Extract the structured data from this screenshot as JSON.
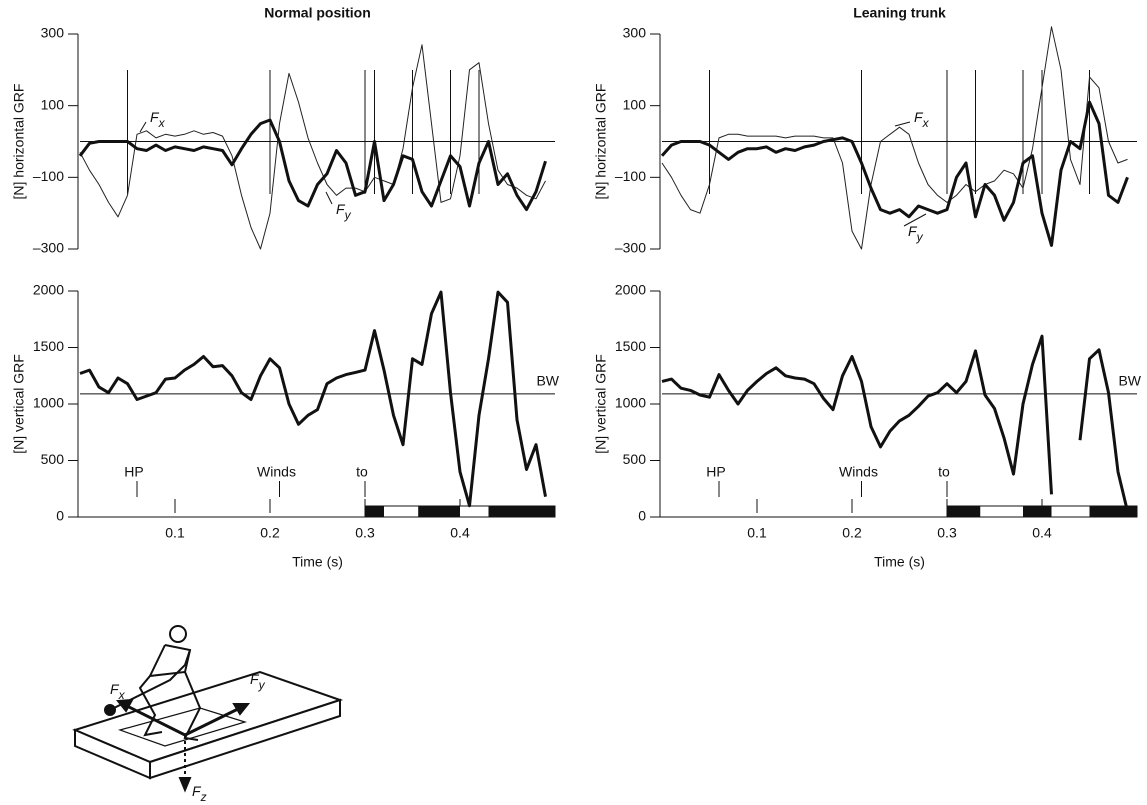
{
  "chart_data": [
    {
      "type": "line",
      "title": "Normal position",
      "y_label": "[N] horizontal GRF",
      "xlim": [
        0,
        0.5
      ],
      "ylim": [
        -300,
        300
      ],
      "yticks": [
        {
          "value": -300,
          "label": "–300"
        },
        {
          "value": -100,
          "label": "–100"
        },
        100,
        300
      ],
      "reference_line": {
        "value": 0
      },
      "events": [
        0.05,
        0.2,
        0.3,
        0.31,
        0.35,
        0.39,
        0.42
      ],
      "x": [
        0,
        0.01,
        0.02,
        0.03,
        0.04,
        0.05,
        0.06,
        0.07,
        0.08,
        0.09,
        0.1,
        0.11,
        0.12,
        0.13,
        0.14,
        0.15,
        0.16,
        0.17,
        0.18,
        0.19,
        0.2,
        0.21,
        0.22,
        0.23,
        0.24,
        0.25,
        0.26,
        0.27,
        0.28,
        0.29,
        0.3,
        0.31,
        0.32,
        0.33,
        0.34,
        0.35,
        0.36,
        0.37,
        0.38,
        0.39,
        0.4,
        0.41,
        0.42,
        0.43,
        0.44,
        0.45,
        0.46,
        0.47,
        0.48,
        0.49
      ],
      "series": [
        {
          "name": "Fx",
          "color": "#222",
          "width": 1,
          "values": [
            -30,
            -80,
            -120,
            -170,
            -210,
            -150,
            20,
            30,
            10,
            20,
            15,
            20,
            30,
            20,
            25,
            15,
            -40,
            -150,
            -240,
            -300,
            -200,
            50,
            190,
            110,
            10,
            -60,
            -120,
            -150,
            -130,
            -130,
            -140,
            -100,
            -110,
            -120,
            -20,
            150,
            270,
            50,
            -170,
            -160,
            -40,
            200,
            220,
            50,
            -80,
            -120,
            -130,
            -150,
            -160,
            -110
          ]
        },
        {
          "name": "Fy",
          "color": "#111",
          "width": 3,
          "values": [
            -40,
            -5,
            0,
            0,
            0,
            0,
            -20,
            -25,
            -10,
            -25,
            -15,
            -20,
            -25,
            -15,
            -20,
            -25,
            -65,
            -20,
            20,
            50,
            60,
            0,
            -110,
            -165,
            -180,
            -120,
            -90,
            -25,
            -60,
            -150,
            -140,
            0,
            -165,
            -120,
            -40,
            -50,
            -140,
            -180,
            -110,
            -40,
            -70,
            -180,
            -60,
            0,
            -120,
            -90,
            -150,
            -190,
            -140,
            -55
          ]
        }
      ]
    },
    {
      "type": "line",
      "y_label": "[N] vertical GRF",
      "x_label": "Time (s)",
      "xlim": [
        0,
        0.5
      ],
      "ylim": [
        0,
        2000
      ],
      "yticks": [
        0,
        500,
        1000,
        1500,
        2000
      ],
      "xticks": [
        0.1,
        0.2,
        0.3,
        0.4
      ],
      "reference_line": {
        "value": 1090,
        "label": "BW"
      },
      "annotations": [
        {
          "text": "HP",
          "x": 0.06
        },
        {
          "text": "Winds",
          "x": 0.21
        },
        {
          "text": "to",
          "x": 0.3
        }
      ],
      "contact": {
        "start": 0.3,
        "end": 0.5,
        "black": [
          [
            0.3,
            0.32
          ],
          [
            0.356,
            0.4
          ],
          [
            0.43,
            0.5
          ]
        ]
      },
      "x": [
        0,
        0.01,
        0.02,
        0.03,
        0.04,
        0.05,
        0.06,
        0.07,
        0.08,
        0.09,
        0.1,
        0.11,
        0.12,
        0.13,
        0.14,
        0.15,
        0.16,
        0.17,
        0.18,
        0.19,
        0.2,
        0.21,
        0.22,
        0.23,
        0.24,
        0.25,
        0.26,
        0.27,
        0.28,
        0.29,
        0.3,
        0.31,
        0.32,
        0.33,
        0.34,
        0.35,
        0.36,
        0.37,
        0.38,
        0.39,
        0.4,
        0.41,
        0.42,
        0.43,
        0.44,
        0.45,
        0.46,
        0.47,
        0.48,
        0.49
      ],
      "series": [
        {
          "color": "#111",
          "width": 3,
          "values": [
            1270,
            1300,
            1150,
            1100,
            1230,
            1180,
            1040,
            1070,
            1100,
            1220,
            1230,
            1300,
            1350,
            1420,
            1330,
            1340,
            1250,
            1100,
            1040,
            1250,
            1400,
            1320,
            1000,
            820,
            900,
            950,
            1180,
            1230,
            1260,
            1280,
            1300,
            1650,
            1300,
            900,
            640,
            1400,
            1350,
            1800,
            1990,
            1100,
            400,
            100,
            900,
            1400,
            1990,
            1900,
            860,
            420,
            640,
            180
          ]
        }
      ]
    },
    {
      "type": "line",
      "title": "Leaning trunk",
      "y_label": "[N] horizontal GRF",
      "xlim": [
        0,
        0.5
      ],
      "ylim": [
        -300,
        300
      ],
      "yticks": [
        {
          "value": -300,
          "label": "–300"
        },
        {
          "value": -100,
          "label": "–100"
        },
        100,
        300
      ],
      "reference_line": {
        "value": 0
      },
      "events": [
        0.05,
        0.21,
        0.3,
        0.33,
        0.38,
        0.4,
        0.45
      ],
      "x": [
        0,
        0.01,
        0.02,
        0.03,
        0.04,
        0.05,
        0.06,
        0.07,
        0.08,
        0.09,
        0.1,
        0.11,
        0.12,
        0.13,
        0.14,
        0.15,
        0.16,
        0.17,
        0.18,
        0.19,
        0.2,
        0.21,
        0.22,
        0.23,
        0.24,
        0.25,
        0.26,
        0.27,
        0.28,
        0.29,
        0.3,
        0.31,
        0.32,
        0.33,
        0.34,
        0.35,
        0.36,
        0.37,
        0.38,
        0.39,
        0.4,
        0.41,
        0.42,
        0.43,
        0.44,
        0.45,
        0.46,
        0.47,
        0.48,
        0.49
      ],
      "series": [
        {
          "name": "Fx",
          "color": "#222",
          "width": 1,
          "values": [
            -60,
            -100,
            -150,
            -190,
            -200,
            -120,
            10,
            20,
            20,
            15,
            15,
            15,
            15,
            10,
            15,
            15,
            15,
            10,
            10,
            -60,
            -250,
            -300,
            -120,
            0,
            20,
            40,
            20,
            -60,
            -120,
            -150,
            -170,
            -150,
            -120,
            -140,
            -120,
            -110,
            -80,
            -90,
            -130,
            -20,
            150,
            320,
            200,
            -50,
            -120,
            180,
            150,
            0,
            -60,
            -50
          ]
        },
        {
          "name": "Fy",
          "color": "#111",
          "width": 3,
          "values": [
            -40,
            -10,
            0,
            0,
            0,
            -10,
            -30,
            -50,
            -30,
            -20,
            -20,
            -15,
            -30,
            -20,
            -25,
            -15,
            -10,
            0,
            5,
            10,
            0,
            -60,
            -130,
            -190,
            -200,
            -190,
            -210,
            -180,
            -190,
            -200,
            -190,
            -100,
            -60,
            -210,
            -120,
            -150,
            -220,
            -170,
            -60,
            -40,
            -200,
            -290,
            -80,
            0,
            -20,
            110,
            50,
            -150,
            -170,
            -100
          ]
        }
      ]
    },
    {
      "type": "line",
      "y_label": "[N] vertical GRF",
      "x_label": "Time (s)",
      "xlim": [
        0,
        0.5
      ],
      "ylim": [
        0,
        2000
      ],
      "yticks": [
        0,
        500,
        1000,
        1500,
        2000
      ],
      "xticks": [
        0.1,
        0.2,
        0.3,
        0.4
      ],
      "reference_line": {
        "value": 1090,
        "label": "BW"
      },
      "annotations": [
        {
          "text": "HP",
          "x": 0.06
        },
        {
          "text": "Winds",
          "x": 0.21
        },
        {
          "text": "to",
          "x": 0.3
        }
      ],
      "contact": {
        "start": 0.3,
        "end": 0.5,
        "black": [
          [
            0.3,
            0.335
          ],
          [
            0.38,
            0.41
          ],
          [
            0.45,
            0.5
          ]
        ]
      },
      "x": [
        0,
        0.01,
        0.02,
        0.03,
        0.04,
        0.05,
        0.06,
        0.07,
        0.08,
        0.09,
        0.1,
        0.11,
        0.12,
        0.13,
        0.14,
        0.15,
        0.16,
        0.17,
        0.18,
        0.19,
        0.2,
        0.21,
        0.22,
        0.23,
        0.24,
        0.25,
        0.26,
        0.27,
        0.28,
        0.29,
        0.3,
        0.31,
        0.32,
        0.33,
        0.34,
        0.35,
        0.36,
        0.37,
        0.38,
        0.39,
        0.4,
        0.41,
        0.42,
        0.43,
        0.44,
        0.45,
        0.46,
        0.47,
        0.48,
        0.49
      ],
      "series": [
        {
          "color": "#111",
          "width": 3,
          "values": [
            1200,
            1220,
            1140,
            1120,
            1080,
            1060,
            1260,
            1120,
            1000,
            1120,
            1200,
            1270,
            1320,
            1250,
            1230,
            1220,
            1180,
            1050,
            950,
            1250,
            1420,
            1200,
            800,
            620,
            760,
            850,
            900,
            980,
            1070,
            1100,
            1180,
            1100,
            1200,
            1470,
            1080,
            960,
            700,
            380,
            1000,
            1350,
            1600,
            200,
            null,
            null,
            680,
            1400,
            1480,
            1100,
            400,
            50
          ]
        }
      ]
    }
  ],
  "diagram": {
    "labels": [
      "Fx",
      "Fy",
      "Fz"
    ]
  }
}
